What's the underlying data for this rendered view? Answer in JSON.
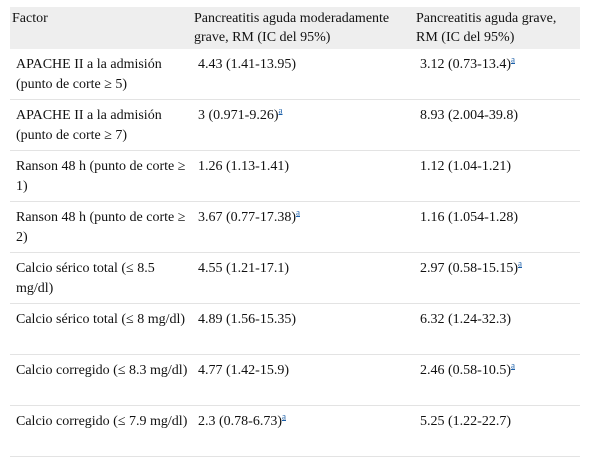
{
  "header": {
    "col1": "Factor",
    "col2": "Pancreatitis aguda moderadamente grave, RM (IC del 95%)",
    "col3": "Pancreatitis aguda grave, RM (IC del 95%)"
  },
  "rows": [
    {
      "factor": "APACHE II a la admisión (punto de corte ≥ 5)",
      "moderate": "4.43 (1.41-13.95)",
      "moderate_note": "",
      "severe": "3.12 (0.73-13.4)",
      "severe_note": "a"
    },
    {
      "factor": "APACHE II a la admisión (punto de corte ≥ 7)",
      "moderate": "3 (0.971-9.26)",
      "moderate_note": "a",
      "severe": "8.93 (2.004-39.8)",
      "severe_note": ""
    },
    {
      "factor": "Ranson 48 h (punto de corte ≥ 1)",
      "moderate": "1.26 (1.13-1.41)",
      "moderate_note": "",
      "severe": "1.12 (1.04-1.21)",
      "severe_note": ""
    },
    {
      "factor": "Ranson 48 h (punto de corte ≥ 2)",
      "moderate": "3.67 (0.77-17.38)",
      "moderate_note": "a",
      "severe": "1.16 (1.054-1.28)",
      "severe_note": ""
    },
    {
      "factor": "Calcio sérico total (≤ 8.5 mg/dl)",
      "moderate": "4.55 (1.21-17.1)",
      "moderate_note": "",
      "severe": "2.97 (0.58-15.15)",
      "severe_note": "a"
    },
    {
      "factor": "Calcio sérico total (≤ 8 mg/dl)",
      "moderate": "4.89 (1.56-15.35)",
      "moderate_note": "",
      "severe": "6.32 (1.24-32.3)",
      "severe_note": ""
    },
    {
      "factor": "Calcio corregido (≤ 8.3 mg/dl)",
      "moderate": "4.77 (1.42-15.9)",
      "moderate_note": "",
      "severe": "2.46 (0.58-10.5)",
      "severe_note": "a"
    },
    {
      "factor": "Calcio corregido (≤ 7.9 mg/dl)",
      "moderate": "2.3 (0.78-6.73)",
      "moderate_note": "a",
      "severe": "5.25 (1.22-22.7)",
      "severe_note": ""
    }
  ],
  "colors": {
    "header_bg": "#eeeeee",
    "note_link": "#1a5ea8"
  }
}
